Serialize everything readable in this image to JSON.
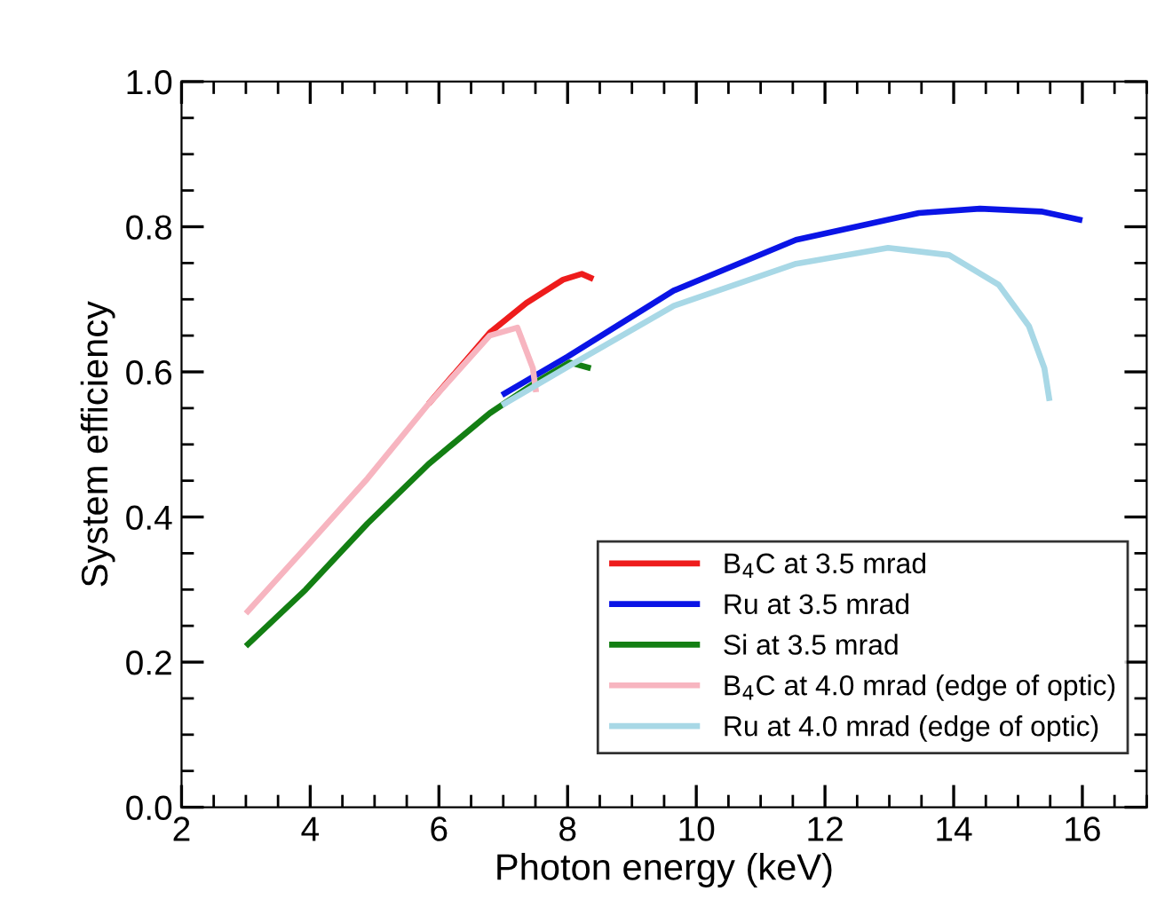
{
  "chart_data": {
    "type": "line",
    "xlabel": "Photon energy (keV)",
    "ylabel": "System efficiency",
    "xlim": [
      2,
      17
    ],
    "xticks": [
      2,
      4,
      6,
      8,
      10,
      12,
      14,
      16
    ],
    "ylim": [
      0,
      1.0
    ],
    "yticks": [
      {
        "value": 0,
        "label": "0.0"
      },
      0.2,
      0.4,
      0.6,
      0.8,
      {
        "value": 1.0,
        "label": "1.0"
      }
    ],
    "grid": false,
    "legend": "bottom right",
    "line_style": "solid",
    "marker": "none",
    "series": [
      {
        "name": "B$_{4}$C at 3.5 mrad",
        "color": "#ee1c1c",
        "x": [
          5.84,
          6.79,
          7.36,
          7.93,
          8.22,
          8.4
        ],
        "values": [
          0.556,
          0.654,
          0.695,
          0.727,
          0.735,
          0.728
        ]
      },
      {
        "name": "Ru at 3.5 mrad",
        "color": "#0a14e6",
        "x": [
          6.98,
          8,
          9.65,
          11.55,
          13.46,
          14.41,
          15.36,
          16
        ],
        "values": [
          0.568,
          0.621,
          0.712,
          0.782,
          0.819,
          0.825,
          0.821,
          0.809
        ]
      },
      {
        "name": "Si at 3.5 mrad",
        "color": "#137f13",
        "x": [
          3,
          3.93,
          4.89,
          5.84,
          6.79,
          7.55,
          8.03,
          8.36
        ],
        "values": [
          0.222,
          0.3,
          0.391,
          0.473,
          0.543,
          0.588,
          0.613,
          0.605
        ]
      },
      {
        "name": "B$_{4}$C at 4.0 mrad (edge of optic)",
        "color": "#f7b5c0",
        "x": [
          3,
          3.93,
          4.89,
          5.84,
          6.79,
          7.22,
          7.46,
          7.51
        ],
        "values": [
          0.267,
          0.358,
          0.453,
          0.556,
          0.65,
          0.661,
          0.605,
          0.572
        ]
      },
      {
        "name": "Ru at 4.0 mrad (edge of optic)",
        "color": "#a8d8e6",
        "x": [
          6.98,
          8,
          9.65,
          11.55,
          12.98,
          13.93,
          14.7,
          15.17,
          15.41,
          15.49
        ],
        "values": [
          0.554,
          0.607,
          0.691,
          0.749,
          0.771,
          0.761,
          0.72,
          0.663,
          0.605,
          0.56
        ]
      }
    ]
  }
}
